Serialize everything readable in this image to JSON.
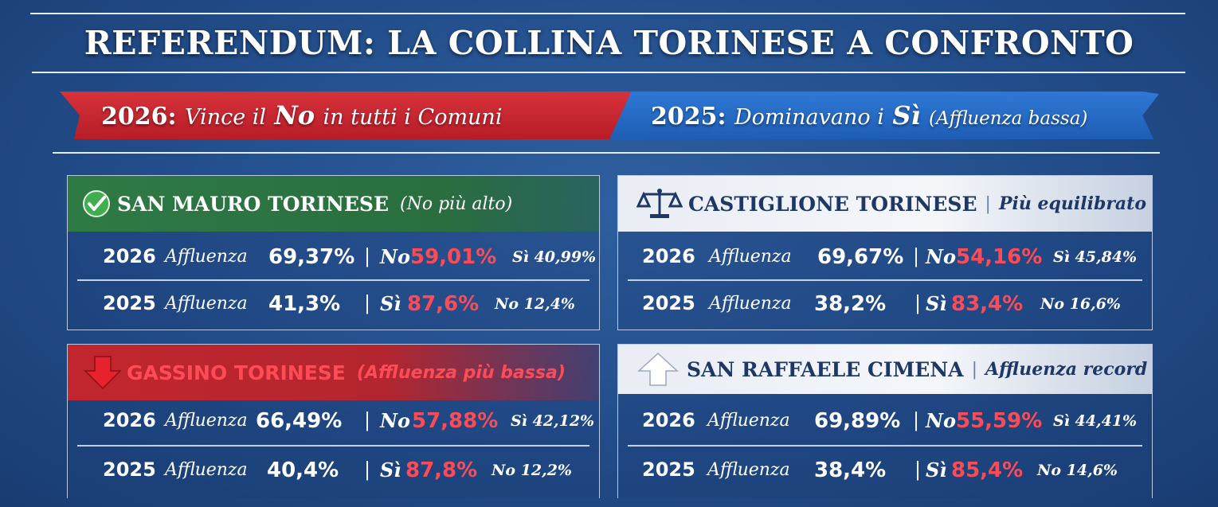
{
  "title": "REFERENDUM: LA COLLINA TORINESE A CONFRONTO",
  "banner_left": {
    "year": "2026:",
    "pre": "Vince il",
    "word": "No",
    "post": "in tutti i Comuni"
  },
  "banner_right": {
    "year": "2025:",
    "pre": "Dominavano i",
    "word": "Sì",
    "post": "(Affluenza bassa)"
  },
  "label_affluenza": "Affluenza",
  "colors": {
    "no_red": "#ff4b55",
    "green": "#2e7a45",
    "red_banner": "#c8262f",
    "blue_banner": "#2668c4"
  },
  "panels": [
    {
      "name": "SAN MAURO TORINESE",
      "subtitle": "(No più alto)",
      "icon": "check-icon",
      "rows": [
        {
          "year": "2026",
          "turnout": "69,37%",
          "winner_label": "No",
          "winner_pct": "59,01%",
          "other": "Sì 40,99%"
        },
        {
          "year": "2025",
          "turnout": "41,3%",
          "winner_label": "Sì",
          "winner_pct": "87,6%",
          "other": "No 12,4%"
        }
      ]
    },
    {
      "name": "CASTIGLIONE TORINESE",
      "subtitle": "Più equilibrato",
      "icon": "scale-icon",
      "rows": [
        {
          "year": "2026",
          "turnout": "69,67%",
          "winner_label": "No",
          "winner_pct": "54,16%",
          "other": "Sì 45,84%"
        },
        {
          "year": "2025",
          "turnout": "38,2%",
          "winner_label": "Sì",
          "winner_pct": "83,4%",
          "other": "No 16,6%"
        }
      ]
    },
    {
      "name": "GASSINO TORINESE",
      "subtitle": "(Affluenza più bassa)",
      "icon": "arrow-down-icon",
      "rows": [
        {
          "year": "2026",
          "turnout": "66,49%",
          "winner_label": "No",
          "winner_pct": "57,88%",
          "other": "Sì 42,12%"
        },
        {
          "year": "2025",
          "turnout": "40,4%",
          "winner_label": "Sì",
          "winner_pct": "87,8%",
          "other": "No 12,2%"
        }
      ]
    },
    {
      "name": "SAN RAFFAELE CIMENA",
      "subtitle": "Affluenza record",
      "icon": "arrow-up-icon",
      "rows": [
        {
          "year": "2026",
          "turnout": "69,89%",
          "winner_label": "No",
          "winner_pct": "55,59%",
          "other": "Sì 44,41%"
        },
        {
          "year": "2025",
          "turnout": "38,4%",
          "winner_label": "Sì",
          "winner_pct": "85,4%",
          "other": "No 14,6%"
        }
      ]
    }
  ]
}
